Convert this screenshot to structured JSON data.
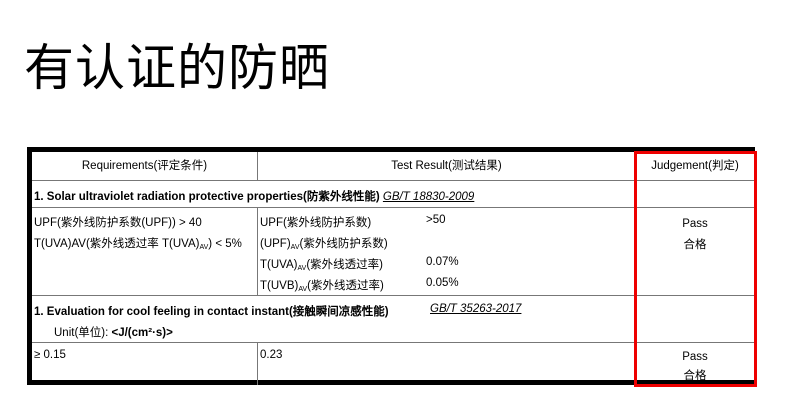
{
  "title": "有认证的防晒",
  "table": {
    "headers": {
      "requirements": "Requirements(评定条件)",
      "result": "Test Result(测试结果)",
      "judgement": "Judgement(判定)"
    },
    "section1": {
      "title": "1. Solar ultraviolet radiation protective properties(防紫外线性能)",
      "standard": "GB/T 18830-2009",
      "requirements": [
        "UPF(紫外线防护系数(UPF)) > 40",
        "T(UVA)AV(紫外线透过率 T(UVA)",
        "AV",
        ") < 5%"
      ],
      "results": [
        {
          "label": "UPF(紫外线防护系数)",
          "sub": "",
          "suffix": "",
          "value": ">50"
        },
        {
          "label": "(UPF)",
          "sub": "AV",
          "suffix": "(紫外线防护系数)",
          "value": ""
        },
        {
          "label": "T(UVA)",
          "sub": "AV",
          "suffix": "(紫外线透过率)",
          "value": "0.07%"
        },
        {
          "label": "T(UVB)",
          "sub": "AV",
          "suffix": "(紫外线透过率)",
          "value": "0.05%"
        }
      ],
      "judgement": [
        "Pass",
        "合格"
      ]
    },
    "section2": {
      "title": "1. Evaluation for cool feeling in contact instant(接触瞬间凉感性能)",
      "standard": "GB/T 35263-2017",
      "unit_label": "Unit(单位): ",
      "unit": "<J/(cm²·s)>",
      "requirement": "≥ 0.15",
      "result": "0.23",
      "judgement": [
        "Pass",
        "合格"
      ]
    }
  }
}
